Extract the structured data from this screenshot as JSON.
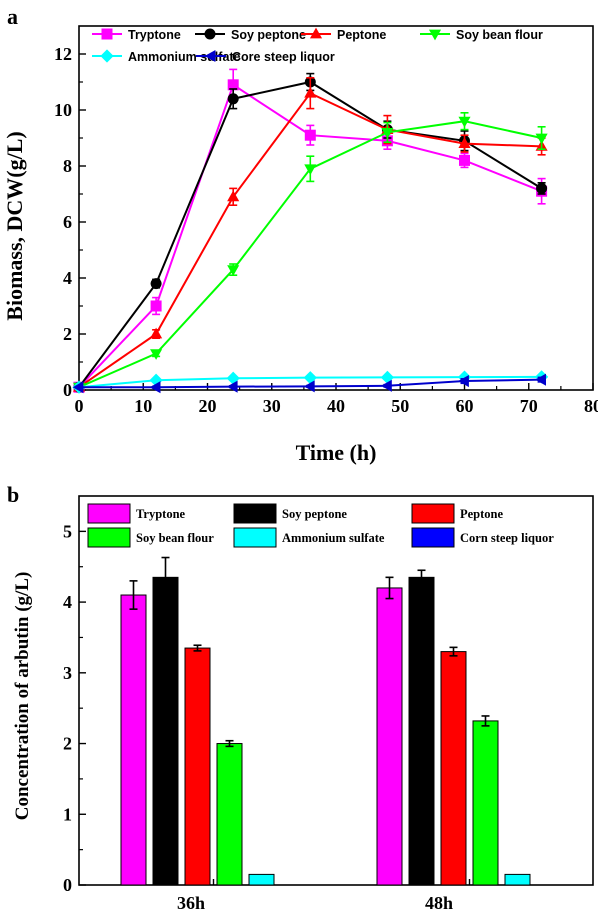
{
  "chart_data": [
    {
      "panel": "a",
      "type": "line",
      "xlabel": "Time (h)",
      "ylabel": "Biomass, DCW(g/L)",
      "xlim": [
        0,
        80
      ],
      "ylim": [
        0,
        13
      ],
      "xticks": [
        0,
        10,
        20,
        30,
        40,
        50,
        60,
        70,
        80
      ],
      "yticks": [
        0,
        2,
        4,
        6,
        8,
        10,
        12
      ],
      "grid": false,
      "legend": "top, inside",
      "x": [
        0,
        12,
        24,
        36,
        48,
        60,
        72
      ],
      "series": [
        {
          "name": "Tryptone",
          "color": "#ff00ff",
          "marker": "square",
          "values": [
            0.1,
            3.0,
            10.9,
            9.1,
            8.9,
            8.2,
            7.1
          ],
          "errors": [
            0.05,
            0.3,
            0.55,
            0.35,
            0.3,
            0.25,
            0.45
          ]
        },
        {
          "name": "Soy peptone",
          "color": "#000000",
          "marker": "circle",
          "values": [
            0.1,
            3.8,
            10.4,
            11.0,
            9.3,
            8.9,
            7.2
          ],
          "errors": [
            0.05,
            0.15,
            0.35,
            0.3,
            0.3,
            0.35,
            0.2
          ]
        },
        {
          "name": "Peptone",
          "color": "#ff0000",
          "marker": "triangle-up",
          "values": [
            0.1,
            2.0,
            6.9,
            10.6,
            9.3,
            8.8,
            8.7
          ],
          "errors": [
            0.05,
            0.15,
            0.3,
            0.55,
            0.5,
            0.3,
            0.3
          ]
        },
        {
          "name": "Soy bean flour",
          "color": "#00ff00",
          "marker": "triangle-down",
          "values": [
            0.1,
            1.3,
            4.3,
            7.9,
            9.2,
            9.6,
            9.0
          ],
          "errors": [
            0.05,
            0.1,
            0.2,
            0.45,
            0.35,
            0.3,
            0.4
          ]
        },
        {
          "name": "Ammonium sulfate",
          "color": "#00ffff",
          "marker": "diamond",
          "values": [
            0.1,
            0.35,
            0.42,
            0.44,
            0.45,
            0.46,
            0.47
          ],
          "errors": [
            0.02,
            0.04,
            0.05,
            0.05,
            0.05,
            0.05,
            0.05
          ]
        },
        {
          "name": "Core steep liquor",
          "color": "#0000cc",
          "marker": "triangle-left",
          "values": [
            0.1,
            0.1,
            0.12,
            0.13,
            0.15,
            0.32,
            0.37
          ],
          "errors": [
            0.02,
            0.03,
            0.03,
            0.03,
            0.04,
            0.08,
            0.08
          ]
        }
      ]
    },
    {
      "panel": "b",
      "type": "bar",
      "xlabel": "",
      "ylabel": "Concentration of arbutin (g/L)",
      "ylim": [
        0,
        5.5
      ],
      "yticks": [
        0,
        1,
        2,
        3,
        4,
        5
      ],
      "grid": false,
      "legend": "top, inside",
      "categories": [
        "36h",
        "48h"
      ],
      "series": [
        {
          "name": "Tryptone",
          "color": "#ff00ff",
          "values": [
            4.1,
            4.2
          ],
          "errors": [
            0.2,
            0.15
          ]
        },
        {
          "name": "Soy peptone",
          "color": "#000000",
          "values": [
            4.35,
            4.35
          ],
          "errors": [
            0.28,
            0.1
          ]
        },
        {
          "name": "Peptone",
          "color": "#ff0000",
          "values": [
            3.35,
            3.3
          ],
          "errors": [
            0.04,
            0.06
          ]
        },
        {
          "name": "Soy bean flour",
          "color": "#00ff00",
          "values": [
            2.0,
            2.32
          ],
          "errors": [
            0.04,
            0.07
          ]
        },
        {
          "name": "Ammonium sulfate",
          "color": "#00ffff",
          "values": [
            0.15,
            0.15
          ],
          "errors": [
            0,
            0
          ]
        },
        {
          "name": "Corn steep liquor",
          "color": "#0000ff",
          "values": [
            0,
            0
          ],
          "errors": [
            0,
            0
          ]
        }
      ]
    }
  ]
}
